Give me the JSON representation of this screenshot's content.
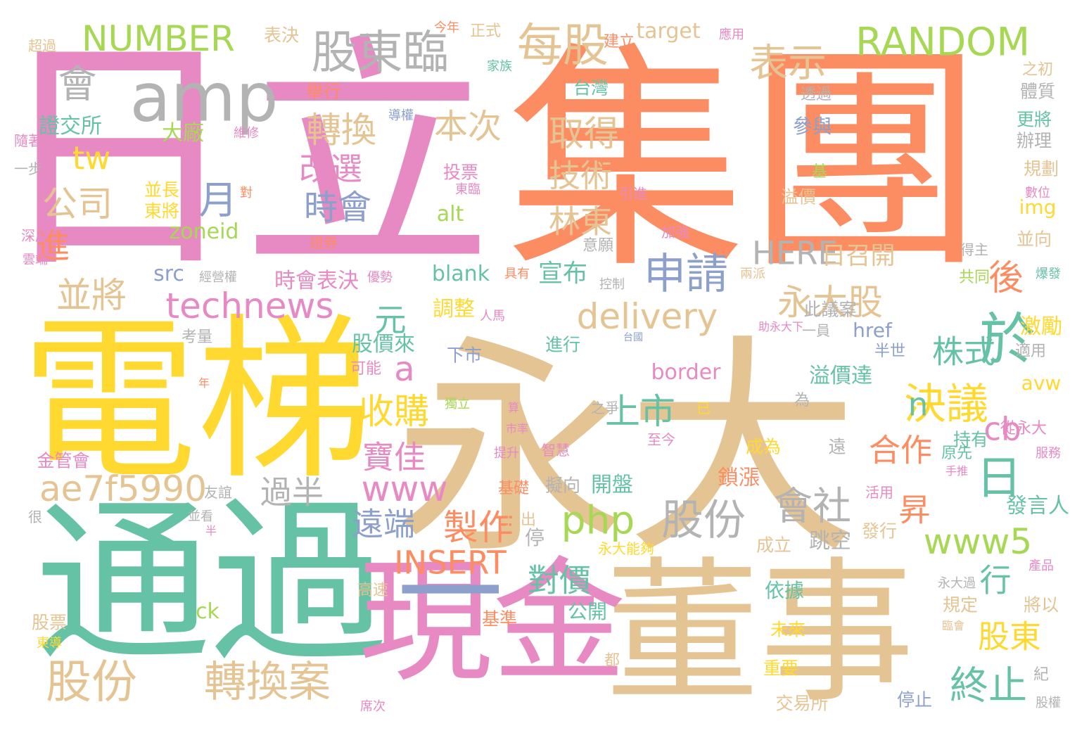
{
  "title": "",
  "palette": {
    "pink": "#e78ac3",
    "orange": "#fc8d62",
    "tan": "#e5c494",
    "yellow": "#ffd92f",
    "teal": "#66c2a5",
    "blue": "#8da0cb",
    "green": "#a6d854",
    "gray": "#b3b3b3"
  },
  "words": [
    {
      "text": "日立",
      "color": "pink"
    },
    {
      "text": "集團",
      "color": "orange"
    },
    {
      "text": "永大",
      "color": "tan"
    },
    {
      "text": "電梯",
      "color": "yellow"
    },
    {
      "text": "通過",
      "color": "teal"
    },
    {
      "text": "董事",
      "color": "tan"
    },
    {
      "text": "現金",
      "color": "pink"
    },
    {
      "text": "一",
      "color": "blue"
    },
    {
      "text": "amp",
      "color": "gray"
    },
    {
      "text": "股東臨",
      "color": "gray"
    },
    {
      "text": "每股",
      "color": "tan"
    },
    {
      "text": "表示",
      "color": "tan"
    },
    {
      "text": "RANDOM",
      "color": "green"
    },
    {
      "text": "NUMBER",
      "color": "green"
    },
    {
      "text": "會",
      "color": "gray"
    },
    {
      "text": "tw",
      "color": "yellow"
    },
    {
      "text": "公司",
      "color": "tan"
    },
    {
      "text": "月",
      "color": "blue"
    },
    {
      "text": "進",
      "color": "orange"
    },
    {
      "text": "並將",
      "color": "tan"
    },
    {
      "text": "technews",
      "color": "pink"
    },
    {
      "text": "轉換",
      "color": "tan"
    },
    {
      "text": "本次",
      "color": "tan"
    },
    {
      "text": "取得",
      "color": "tan"
    },
    {
      "text": "改選",
      "color": "pink"
    },
    {
      "text": "技術",
      "color": "tan"
    },
    {
      "text": "時會",
      "color": "blue"
    },
    {
      "text": "林東",
      "color": "tan"
    },
    {
      "text": "申請",
      "color": "blue"
    },
    {
      "text": "後",
      "color": "orange"
    },
    {
      "text": "HERE",
      "color": "gray"
    },
    {
      "text": "永大股",
      "color": "tan"
    },
    {
      "text": "元",
      "color": "teal"
    },
    {
      "text": "delivery",
      "color": "tan"
    },
    {
      "text": "日召開",
      "color": "tan"
    },
    {
      "text": "株式",
      "color": "teal"
    },
    {
      "text": "a",
      "color": "pink"
    },
    {
      "text": "收購",
      "color": "yellow"
    },
    {
      "text": "上市",
      "color": "teal"
    },
    {
      "text": "決議",
      "color": "yellow"
    },
    {
      "text": "n",
      "color": "teal"
    },
    {
      "text": "cb",
      "color": "pink"
    },
    {
      "text": "於",
      "color": "teal"
    },
    {
      "text": "日",
      "color": "teal"
    },
    {
      "text": "昇",
      "color": "orange"
    },
    {
      "text": "合作",
      "color": "orange"
    },
    {
      "text": "ae7f5990",
      "color": "tan"
    },
    {
      "text": "寶佳",
      "color": "pink"
    },
    {
      "text": "www",
      "color": "pink"
    },
    {
      "text": "過半",
      "color": "gray"
    },
    {
      "text": "股份",
      "color": "gray"
    },
    {
      "text": "會社",
      "color": "gray"
    },
    {
      "text": "php",
      "color": "green"
    },
    {
      "text": "遠端",
      "color": "blue"
    },
    {
      "text": "製作",
      "color": "orange"
    },
    {
      "text": "www5",
      "color": "green"
    },
    {
      "text": "INSERT",
      "color": "orange"
    },
    {
      "text": "行",
      "color": "teal"
    },
    {
      "text": "對價",
      "color": "teal"
    },
    {
      "text": "股東",
      "color": "yellow"
    },
    {
      "text": "終止",
      "color": "teal"
    },
    {
      "text": "股份",
      "color": "tan"
    },
    {
      "text": "轉換案",
      "color": "tan"
    },
    {
      "text": "zoneid",
      "color": "green"
    },
    {
      "text": "src",
      "color": "blue"
    },
    {
      "text": "時會表決",
      "color": "pink"
    },
    {
      "text": "blank",
      "color": "teal"
    },
    {
      "text": "宣布",
      "color": "teal"
    },
    {
      "text": "調整",
      "color": "yellow"
    },
    {
      "text": "股價來",
      "color": "teal"
    },
    {
      "text": "border",
      "color": "pink"
    },
    {
      "text": "溢價達",
      "color": "teal"
    },
    {
      "text": "激勵",
      "color": "yellow"
    },
    {
      "text": "avw",
      "color": "yellow"
    },
    {
      "text": "img",
      "color": "yellow"
    },
    {
      "text": "href",
      "color": "blue"
    },
    {
      "text": "target",
      "color": "tan"
    },
    {
      "text": "證交所",
      "color": "teal"
    },
    {
      "text": "大廠",
      "color": "green"
    },
    {
      "text": "並長",
      "color": "yellow"
    },
    {
      "text": "東將",
      "color": "yellow"
    },
    {
      "text": "alt",
      "color": "green"
    },
    {
      "text": "投票",
      "color": "pink"
    },
    {
      "text": "台灣",
      "color": "teal"
    },
    {
      "text": "舉行",
      "color": "orange"
    },
    {
      "text": "參與",
      "color": "blue"
    },
    {
      "text": "溢價",
      "color": "tan"
    },
    {
      "text": "鎖漲",
      "color": "orange"
    },
    {
      "text": "開盤",
      "color": "teal"
    },
    {
      "text": "擬向",
      "color": "gray"
    },
    {
      "text": "發言人",
      "color": "teal"
    },
    {
      "text": "規劃",
      "color": "tan"
    },
    {
      "text": "辦理",
      "color": "gray"
    },
    {
      "text": "更將",
      "color": "teal"
    },
    {
      "text": "體質",
      "color": "gray"
    },
    {
      "text": "建立",
      "color": "orange"
    },
    {
      "text": "正式",
      "color": "tan"
    },
    {
      "text": "今年",
      "color": "orange"
    },
    {
      "text": "表決",
      "color": "tan"
    },
    {
      "text": "超過",
      "color": "tan"
    },
    {
      "text": "隨著",
      "color": "pink"
    },
    {
      "text": "一步",
      "color": "gray"
    },
    {
      "text": "深厚",
      "color": "pink"
    },
    {
      "text": "雲端",
      "color": "pink"
    },
    {
      "text": "經營權",
      "color": "gray"
    },
    {
      "text": "優勢",
      "color": "pink"
    },
    {
      "text": "證券",
      "color": "orange"
    },
    {
      "text": "意願",
      "color": "gray"
    },
    {
      "text": "加強",
      "color": "pink"
    },
    {
      "text": "引進",
      "color": "pink"
    },
    {
      "text": "東臨",
      "color": "pink"
    },
    {
      "text": "基",
      "color": "green"
    },
    {
      "text": "透過",
      "color": "gray"
    },
    {
      "text": "家族",
      "color": "teal"
    },
    {
      "text": "導權",
      "color": "blue"
    },
    {
      "text": "維修",
      "color": "pink"
    },
    {
      "text": "對",
      "color": "orange"
    },
    {
      "text": "具有",
      "color": "orange"
    },
    {
      "text": "控制",
      "color": "gray"
    },
    {
      "text": "兩派",
      "color": "tan"
    },
    {
      "text": "共同",
      "color": "green"
    },
    {
      "text": "並向",
      "color": "tan"
    },
    {
      "text": "數位",
      "color": "pink"
    },
    {
      "text": "爆發",
      "color": "teal"
    },
    {
      "text": "得主",
      "color": "gray"
    },
    {
      "text": "之初",
      "color": "tan"
    },
    {
      "text": "應用",
      "color": "pink"
    },
    {
      "text": "此議案",
      "color": "gray"
    },
    {
      "text": "一員",
      "color": "gray"
    },
    {
      "text": "助永大下",
      "color": "pink"
    },
    {
      "text": "半世",
      "color": "blue"
    },
    {
      "text": "適用",
      "color": "gray"
    },
    {
      "text": "進行",
      "color": "teal"
    },
    {
      "text": "下市",
      "color": "blue"
    },
    {
      "text": "人馬",
      "color": "pink"
    },
    {
      "text": "台國",
      "color": "blue"
    },
    {
      "text": "可能",
      "color": "pink"
    },
    {
      "text": "考量",
      "color": "gray"
    },
    {
      "text": "年",
      "color": "orange"
    },
    {
      "text": "金管會",
      "color": "pink"
    },
    {
      "text": "友誼",
      "color": "gray"
    },
    {
      "text": "基礎",
      "color": "orange"
    },
    {
      "text": "指出",
      "color": "tan"
    },
    {
      "text": "智慧",
      "color": "pink"
    },
    {
      "text": "提升",
      "color": "pink"
    },
    {
      "text": "成為",
      "color": "yellow"
    },
    {
      "text": "遠",
      "color": "gray"
    },
    {
      "text": "持有",
      "color": "teal"
    },
    {
      "text": "從永大",
      "color": "pink"
    },
    {
      "text": "服務",
      "color": "pink"
    },
    {
      "text": "原先",
      "color": "teal"
    },
    {
      "text": "手推",
      "color": "pink"
    },
    {
      "text": "活用",
      "color": "pink"
    },
    {
      "text": "為",
      "color": "gray"
    },
    {
      "text": "已",
      "color": "yellow"
    },
    {
      "text": "之爭",
      "color": "gray"
    },
    {
      "text": "至今",
      "color": "pink"
    },
    {
      "text": "獨立",
      "color": "green"
    },
    {
      "text": "市率",
      "color": "pink"
    },
    {
      "text": "算",
      "color": "pink"
    },
    {
      "text": "停",
      "color": "gray"
    },
    {
      "text": "跳空",
      "color": "gray"
    },
    {
      "text": "成立",
      "color": "tan"
    },
    {
      "text": "永大能夠",
      "color": "yellow"
    },
    {
      "text": "發行",
      "color": "tan"
    },
    {
      "text": "產品",
      "color": "pink"
    },
    {
      "text": "永大過",
      "color": "gray"
    },
    {
      "text": "依據",
      "color": "teal"
    },
    {
      "text": "規定",
      "color": "tan"
    },
    {
      "text": "將以",
      "color": "tan"
    },
    {
      "text": "未來",
      "color": "yellow"
    },
    {
      "text": "臨會",
      "color": "tan"
    },
    {
      "text": "重要",
      "color": "yellow"
    },
    {
      "text": "紀",
      "color": "gray"
    },
    {
      "text": "交易所",
      "color": "tan"
    },
    {
      "text": "停止",
      "color": "blue"
    },
    {
      "text": "股權",
      "color": "gray"
    },
    {
      "text": "席次",
      "color": "pink"
    },
    {
      "text": "都",
      "color": "tan"
    },
    {
      "text": "公開",
      "color": "teal"
    },
    {
      "text": "基準",
      "color": "orange"
    },
    {
      "text": "ck",
      "color": "green"
    },
    {
      "text": "高速",
      "color": "tan"
    },
    {
      "text": "股票",
      "color": "tan"
    },
    {
      "text": "東導",
      "color": "yellow"
    },
    {
      "text": "很",
      "color": "gray"
    },
    {
      "text": "半",
      "color": "pink"
    },
    {
      "text": "並看",
      "color": "gray"
    }
  ]
}
